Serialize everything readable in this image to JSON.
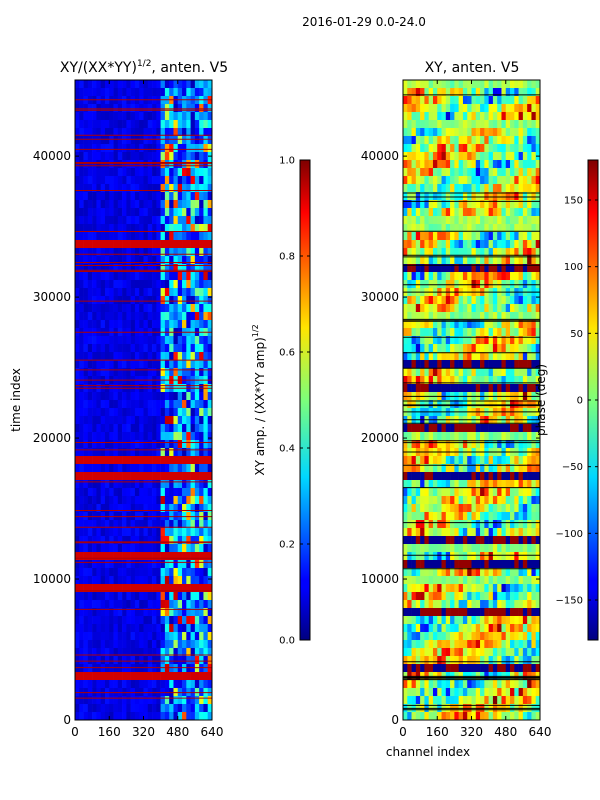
{
  "suptitle": "2016-01-29 0.0-24.0",
  "chart_data": [
    {
      "type": "heatmap",
      "title_prefix": "XY/(XX*YY)",
      "title_exponent": "1/2",
      "title_suffix": ", anten. V5",
      "xlabel": "",
      "ylabel": "time index",
      "xlim": [
        0,
        640
      ],
      "ylim": [
        0,
        45400
      ],
      "xticks": [
        0,
        160,
        320,
        480,
        640
      ],
      "yticks": [
        0,
        10000,
        20000,
        30000,
        40000
      ],
      "xtick_labels": [
        "0",
        "160",
        "320",
        "480",
        "640"
      ],
      "ytick_labels": [
        "0",
        "10000",
        "20000",
        "30000",
        "40000"
      ],
      "colormap": "jet",
      "colorbar": {
        "label_prefix": "XY amp. / (XX*YY amp)",
        "label_exponent": "1/2",
        "range": [
          0.0,
          1.0
        ],
        "ticks": [
          0.0,
          0.2,
          0.4,
          0.6,
          0.8,
          1.0
        ],
        "tick_labels": [
          "0.0",
          "0.2",
          "0.4",
          "0.6",
          "0.8",
          "1.0"
        ]
      }
    },
    {
      "type": "heatmap",
      "title": "XY, anten. V5",
      "xlabel": "channel index",
      "ylabel": "",
      "xlim": [
        0,
        640
      ],
      "ylim": [
        0,
        45400
      ],
      "xticks": [
        0,
        160,
        320,
        480,
        640
      ],
      "yticks": [
        0,
        10000,
        20000,
        30000,
        40000
      ],
      "xtick_labels": [
        "0",
        "160",
        "320",
        "480",
        "640"
      ],
      "ytick_labels": [
        "0",
        "10000",
        "20000",
        "30000",
        "40000"
      ],
      "colormap": "jet",
      "colorbar": {
        "label": "phase (deg)",
        "range": [
          -180,
          180
        ],
        "ticks": [
          -150,
          -100,
          -50,
          0,
          50,
          100,
          150
        ],
        "tick_labels": [
          "−150",
          "−100",
          "−50",
          "0",
          "50",
          "100",
          "150"
        ]
      }
    }
  ]
}
